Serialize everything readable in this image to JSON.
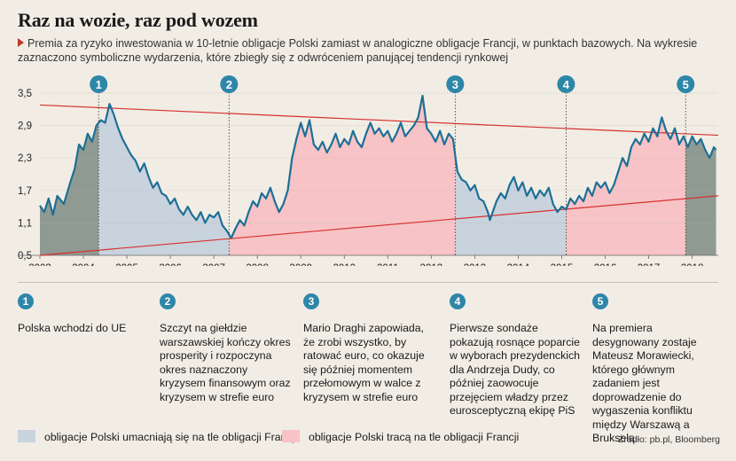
{
  "title": "Raz na wozie, raz pod wozem",
  "subtitle": "Premia za ryzyko inwestowania w 10-letnie obligacje Polski zamiast w analogiczne obligacje Francji, w punktach bazowych. Na wykresie zaznaczono symboliczne wydarzenia, które zbiegły się z odwróceniem panującej tendencji rynkowej",
  "chart_data": {
    "type": "line",
    "xlabel": "",
    "ylabel": "",
    "xlim": [
      2003,
      2018.6
    ],
    "ylim": [
      0.5,
      3.5
    ],
    "yticks": [
      "0,5",
      "1,1",
      "1,7",
      "2,3",
      "2,9",
      "3,5"
    ],
    "yticks_values": [
      0.5,
      1.1,
      1.7,
      2.3,
      2.9,
      3.5
    ],
    "xticks": [
      "2003",
      "2004",
      "2005",
      "2006",
      "2007",
      "2008",
      "2009",
      "2010",
      "2011",
      "2012",
      "2013",
      "2014",
      "2015",
      "2016",
      "2017",
      "2018"
    ],
    "grid": "horizontal",
    "series": [
      {
        "values": [
          [
            2003.0,
            1.42
          ],
          [
            2003.1,
            1.3
          ],
          [
            2003.2,
            1.55
          ],
          [
            2003.3,
            1.25
          ],
          [
            2003.4,
            1.6
          ],
          [
            2003.55,
            1.45
          ],
          [
            2003.7,
            1.85
          ],
          [
            2003.8,
            2.1
          ],
          [
            2003.9,
            2.55
          ],
          [
            2004.0,
            2.45
          ],
          [
            2004.1,
            2.75
          ],
          [
            2004.2,
            2.6
          ],
          [
            2004.3,
            2.9
          ],
          [
            2004.4,
            3.0
          ],
          [
            2004.5,
            2.95
          ],
          [
            2004.6,
            3.3
          ],
          [
            2004.7,
            3.1
          ],
          [
            2004.8,
            2.85
          ],
          [
            2004.9,
            2.65
          ],
          [
            2005.0,
            2.5
          ],
          [
            2005.1,
            2.35
          ],
          [
            2005.2,
            2.25
          ],
          [
            2005.3,
            2.05
          ],
          [
            2005.4,
            2.2
          ],
          [
            2005.5,
            1.95
          ],
          [
            2005.6,
            1.75
          ],
          [
            2005.7,
            1.85
          ],
          [
            2005.8,
            1.65
          ],
          [
            2005.9,
            1.6
          ],
          [
            2006.0,
            1.45
          ],
          [
            2006.1,
            1.55
          ],
          [
            2006.2,
            1.35
          ],
          [
            2006.3,
            1.25
          ],
          [
            2006.4,
            1.4
          ],
          [
            2006.5,
            1.25
          ],
          [
            2006.6,
            1.15
          ],
          [
            2006.7,
            1.3
          ],
          [
            2006.8,
            1.1
          ],
          [
            2006.9,
            1.25
          ],
          [
            2007.0,
            1.2
          ],
          [
            2007.1,
            1.3
          ],
          [
            2007.2,
            1.05
          ],
          [
            2007.3,
            0.95
          ],
          [
            2007.4,
            0.82
          ],
          [
            2007.5,
            1.0
          ],
          [
            2007.6,
            1.15
          ],
          [
            2007.7,
            1.05
          ],
          [
            2007.8,
            1.3
          ],
          [
            2007.9,
            1.5
          ],
          [
            2008.0,
            1.4
          ],
          [
            2008.1,
            1.65
          ],
          [
            2008.2,
            1.55
          ],
          [
            2008.3,
            1.75
          ],
          [
            2008.4,
            1.5
          ],
          [
            2008.5,
            1.3
          ],
          [
            2008.6,
            1.45
          ],
          [
            2008.7,
            1.7
          ],
          [
            2008.8,
            2.3
          ],
          [
            2008.9,
            2.65
          ],
          [
            2009.0,
            2.95
          ],
          [
            2009.1,
            2.7
          ],
          [
            2009.2,
            3.0
          ],
          [
            2009.3,
            2.55
          ],
          [
            2009.4,
            2.45
          ],
          [
            2009.5,
            2.6
          ],
          [
            2009.6,
            2.4
          ],
          [
            2009.7,
            2.55
          ],
          [
            2009.8,
            2.75
          ],
          [
            2009.9,
            2.5
          ],
          [
            2010.0,
            2.65
          ],
          [
            2010.1,
            2.55
          ],
          [
            2010.2,
            2.8
          ],
          [
            2010.3,
            2.6
          ],
          [
            2010.4,
            2.5
          ],
          [
            2010.5,
            2.75
          ],
          [
            2010.6,
            2.95
          ],
          [
            2010.7,
            2.75
          ],
          [
            2010.8,
            2.85
          ],
          [
            2010.9,
            2.7
          ],
          [
            2011.0,
            2.8
          ],
          [
            2011.1,
            2.6
          ],
          [
            2011.2,
            2.75
          ],
          [
            2011.3,
            2.95
          ],
          [
            2011.4,
            2.7
          ],
          [
            2011.5,
            2.8
          ],
          [
            2011.6,
            2.9
          ],
          [
            2011.7,
            3.05
          ],
          [
            2011.8,
            3.45
          ],
          [
            2011.9,
            2.85
          ],
          [
            2012.0,
            2.75
          ],
          [
            2012.1,
            2.6
          ],
          [
            2012.2,
            2.8
          ],
          [
            2012.3,
            2.55
          ],
          [
            2012.4,
            2.75
          ],
          [
            2012.5,
            2.65
          ],
          [
            2012.55,
            2.35
          ],
          [
            2012.6,
            2.05
          ],
          [
            2012.7,
            1.9
          ],
          [
            2012.8,
            1.85
          ],
          [
            2012.9,
            1.7
          ],
          [
            2013.0,
            1.8
          ],
          [
            2013.1,
            1.55
          ],
          [
            2013.2,
            1.5
          ],
          [
            2013.3,
            1.3
          ],
          [
            2013.35,
            1.15
          ],
          [
            2013.5,
            1.5
          ],
          [
            2013.6,
            1.65
          ],
          [
            2013.7,
            1.55
          ],
          [
            2013.8,
            1.8
          ],
          [
            2013.9,
            1.95
          ],
          [
            2014.0,
            1.7
          ],
          [
            2014.1,
            1.85
          ],
          [
            2014.2,
            1.6
          ],
          [
            2014.3,
            1.75
          ],
          [
            2014.4,
            1.55
          ],
          [
            2014.5,
            1.7
          ],
          [
            2014.6,
            1.6
          ],
          [
            2014.7,
            1.75
          ],
          [
            2014.8,
            1.45
          ],
          [
            2014.9,
            1.3
          ],
          [
            2015.0,
            1.4
          ],
          [
            2015.1,
            1.35
          ],
          [
            2015.2,
            1.55
          ],
          [
            2015.3,
            1.45
          ],
          [
            2015.4,
            1.6
          ],
          [
            2015.5,
            1.5
          ],
          [
            2015.6,
            1.75
          ],
          [
            2015.7,
            1.6
          ],
          [
            2015.8,
            1.85
          ],
          [
            2015.9,
            1.75
          ],
          [
            2016.0,
            1.85
          ],
          [
            2016.1,
            1.65
          ],
          [
            2016.2,
            1.8
          ],
          [
            2016.3,
            2.05
          ],
          [
            2016.4,
            2.3
          ],
          [
            2016.5,
            2.15
          ],
          [
            2016.6,
            2.5
          ],
          [
            2016.7,
            2.65
          ],
          [
            2016.8,
            2.55
          ],
          [
            2016.9,
            2.75
          ],
          [
            2017.0,
            2.6
          ],
          [
            2017.1,
            2.85
          ],
          [
            2017.2,
            2.7
          ],
          [
            2017.3,
            3.05
          ],
          [
            2017.4,
            2.8
          ],
          [
            2017.5,
            2.65
          ],
          [
            2017.6,
            2.85
          ],
          [
            2017.7,
            2.55
          ],
          [
            2017.8,
            2.7
          ],
          [
            2017.9,
            2.5
          ],
          [
            2018.0,
            2.7
          ],
          [
            2018.1,
            2.55
          ],
          [
            2018.2,
            2.65
          ],
          [
            2018.3,
            2.45
          ],
          [
            2018.4,
            2.3
          ],
          [
            2018.5,
            2.5
          ],
          [
            2018.55,
            2.45
          ]
        ]
      }
    ],
    "trend_lines": [
      {
        "from": [
          2003.0,
          3.28
        ],
        "to": [
          2018.6,
          2.72
        ]
      },
      {
        "from": [
          2003.0,
          0.5
        ],
        "to": [
          2018.6,
          1.6
        ]
      }
    ],
    "shaded_periods": [
      {
        "from": 2003.0,
        "to": 2004.35,
        "color": "#8f9a92"
      },
      {
        "from": 2004.35,
        "to": 2007.35,
        "color": "#c9d3de"
      },
      {
        "from": 2007.35,
        "to": 2012.55,
        "color": "#f7c3c6"
      },
      {
        "from": 2012.55,
        "to": 2015.1,
        "color": "#c9d3de"
      },
      {
        "from": 2015.1,
        "to": 2017.85,
        "color": "#f7c3c6"
      },
      {
        "from": 2017.85,
        "to": 2018.6,
        "color": "#8f9a92"
      }
    ],
    "markers": [
      {
        "label": "1",
        "x": 2004.35
      },
      {
        "label": "2",
        "x": 2007.35
      },
      {
        "label": "3",
        "x": 2012.55
      },
      {
        "label": "4",
        "x": 2015.1
      },
      {
        "label": "5",
        "x": 2017.85
      }
    ],
    "line_color": "#1e6f96",
    "marker_color": "#2e86a8"
  },
  "annotations": [
    {
      "num": "1",
      "text": "Polska wchodzi do UE"
    },
    {
      "num": "2",
      "text": "Szczyt na giełdzie warszawskiej kończy okres prosperity i rozpoczyna okres naznaczony kryzysem finansowym oraz kryzysem w strefie euro"
    },
    {
      "num": "3",
      "text": "Mario Draghi zapowiada, że zrobi wszystko, by ratować euro, co okazuje się później momentem przełomowym w walce z kryzysem w strefie euro"
    },
    {
      "num": "4",
      "text": "Pierwsze sondaże pokazują rosnące poparcie w wyborach prezydenckich dla Andrzeja Dudy, co później zaowocuje przejęciem władzy przez eurosceptyczną ekipę PiS"
    },
    {
      "num": "5",
      "text": "Na premiera desygnowany zostaje Mateusz Morawiecki, którego głównym zadaniem jest doprowadzenie do wygaszenia konfliktu między Warszawą a Brukselą"
    }
  ],
  "legend": [
    {
      "label": "obligacje Polski umacniają się na tle obligacji Francji",
      "color": "#c9d3de"
    },
    {
      "label": "obligacje Polski tracą na tle obligacji Francji",
      "color": "#f7c3c6"
    }
  ],
  "source": "Źródło: pb.pl, Bloomberg"
}
